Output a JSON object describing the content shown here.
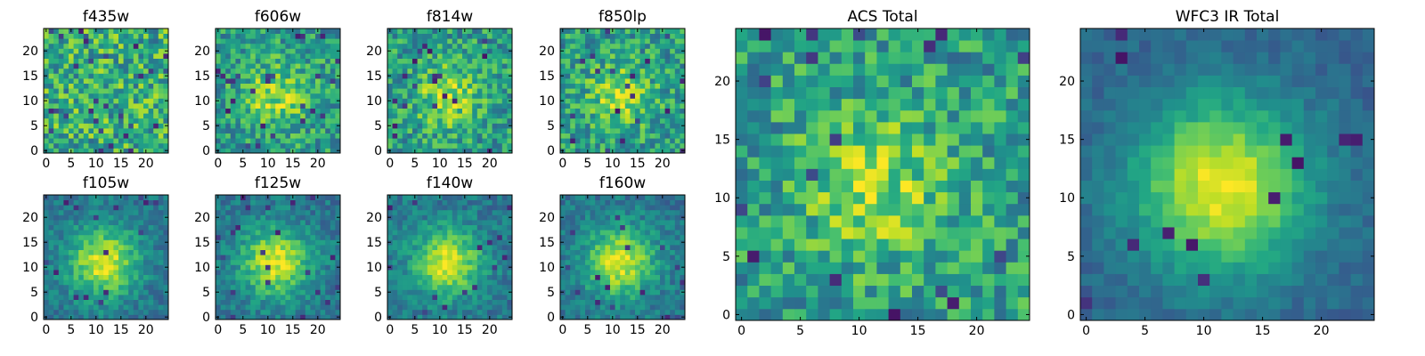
{
  "chart_data": [
    {
      "type": "heatmap",
      "title": "f435w",
      "grid": [
        25,
        25
      ],
      "xticks": [
        "0",
        "5",
        "10",
        "15",
        "20"
      ],
      "yticks": [
        "0",
        "5",
        "10",
        "15",
        "20"
      ],
      "colormap": "viridis",
      "pattern": "noise",
      "seed": 11
    },
    {
      "type": "heatmap",
      "title": "f606w",
      "grid": [
        25,
        25
      ],
      "xticks": [
        "0",
        "5",
        "10",
        "15",
        "20"
      ],
      "yticks": [
        "0",
        "5",
        "10",
        "15",
        "20"
      ],
      "colormap": "viridis",
      "pattern": "noise-center",
      "seed": 23
    },
    {
      "type": "heatmap",
      "title": "f814w",
      "grid": [
        25,
        25
      ],
      "xticks": [
        "0",
        "5",
        "10",
        "15",
        "20"
      ],
      "yticks": [
        "0",
        "5",
        "10",
        "15",
        "20"
      ],
      "colormap": "viridis",
      "pattern": "noise-center",
      "seed": 37
    },
    {
      "type": "heatmap",
      "title": "f850lp",
      "grid": [
        25,
        25
      ],
      "xticks": [
        "0",
        "5",
        "10",
        "15",
        "20"
      ],
      "yticks": [
        "0",
        "5",
        "10",
        "15",
        "20"
      ],
      "colormap": "viridis",
      "pattern": "noise-center",
      "seed": 41
    },
    {
      "type": "heatmap",
      "title": "f105w",
      "grid": [
        25,
        25
      ],
      "xticks": [
        "0",
        "5",
        "10",
        "15",
        "20"
      ],
      "yticks": [
        "0",
        "5",
        "10",
        "15",
        "20"
      ],
      "colormap": "viridis",
      "pattern": "blob",
      "seed": 53
    },
    {
      "type": "heatmap",
      "title": "f125w",
      "grid": [
        25,
        25
      ],
      "xticks": [
        "0",
        "5",
        "10",
        "15",
        "20"
      ],
      "yticks": [
        "0",
        "5",
        "10",
        "15",
        "20"
      ],
      "colormap": "viridis",
      "pattern": "blob",
      "seed": 67
    },
    {
      "type": "heatmap",
      "title": "f140w",
      "grid": [
        25,
        25
      ],
      "xticks": [
        "0",
        "5",
        "10",
        "15",
        "20"
      ],
      "yticks": [
        "0",
        "5",
        "10",
        "15",
        "20"
      ],
      "colormap": "viridis",
      "pattern": "blob",
      "seed": 71
    },
    {
      "type": "heatmap",
      "title": "f160w",
      "grid": [
        25,
        25
      ],
      "xticks": [
        "0",
        "5",
        "10",
        "15",
        "20"
      ],
      "yticks": [
        "0",
        "5",
        "10",
        "15",
        "20"
      ],
      "colormap": "viridis",
      "pattern": "blob",
      "seed": 83
    },
    {
      "type": "heatmap",
      "title": "ACS Total",
      "grid": [
        25,
        25
      ],
      "xticks": [
        "0",
        "5",
        "10",
        "15",
        "20"
      ],
      "yticks": [
        "0",
        "5",
        "10",
        "15",
        "20"
      ],
      "colormap": "viridis",
      "pattern": "noise-center",
      "seed": 97
    },
    {
      "type": "heatmap",
      "title": "WFC3 IR Total",
      "grid": [
        25,
        25
      ],
      "xticks": [
        "0",
        "5",
        "10",
        "15",
        "20"
      ],
      "yticks": [
        "0",
        "5",
        "10",
        "15",
        "20"
      ],
      "colormap": "viridis",
      "pattern": "blob-strong",
      "seed": 101
    }
  ]
}
